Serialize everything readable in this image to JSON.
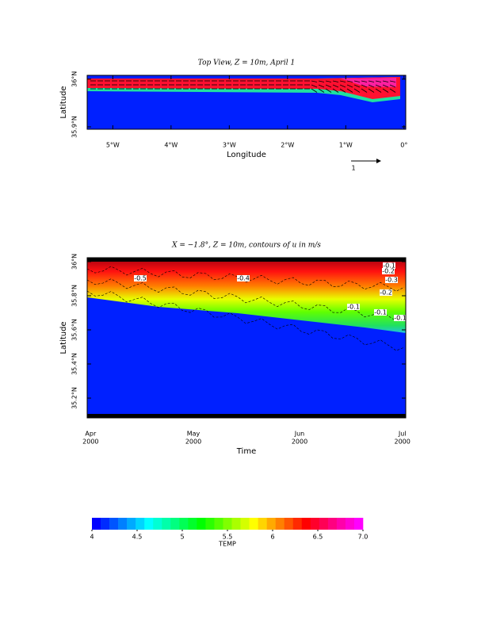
{
  "chart_data": [
    {
      "type": "vector-map",
      "title": "Top View, Z = 10m, April 1",
      "xlabel": "Longitude",
      "ylabel": "Latitude",
      "xlim": [
        -5.44,
        0.03
      ],
      "ylim": [
        35.895,
        36.008
      ],
      "xticks": [
        {
          "value": -5,
          "label": "5°W"
        },
        {
          "value": -4,
          "label": "4°W"
        },
        {
          "value": -3,
          "label": "3°W"
        },
        {
          "value": -2,
          "label": "2°W"
        },
        {
          "value": -1,
          "label": "1°W"
        },
        {
          "value": 0,
          "label": "0°"
        }
      ],
      "yticks": [
        {
          "value": 36,
          "label": "36°N"
        },
        {
          "value": 35.9,
          "label": "35.9°N"
        }
      ],
      "reference_vector": 1
    },
    {
      "type": "hovmoller",
      "title": "X = −1.8°, Z = 10m, contours of u in m/s",
      "xlabel": "Time",
      "ylabel": "Latitude",
      "xlim": [
        "2000-03-31",
        "2000-07-02"
      ],
      "ylim": [
        35.084,
        36.023
      ],
      "xticks": [
        {
          "value": "2000-04-01",
          "label": "Apr",
          "year": "2000"
        },
        {
          "value": "2000-05-01",
          "label": "May",
          "year": "2000"
        },
        {
          "value": "2000-06-01",
          "label": "Jun",
          "year": "2000"
        },
        {
          "value": "2000-07-01",
          "label": "Jul",
          "year": "2000"
        }
      ],
      "yticks": [
        {
          "value": 36,
          "label": "36°N"
        },
        {
          "value": 35.8,
          "label": "35.8°N"
        },
        {
          "value": 35.6,
          "label": "35.6°N"
        },
        {
          "value": 35.4,
          "label": "35.4°N"
        },
        {
          "value": 35.2,
          "label": "35.2°N"
        }
      ],
      "contour_labels": [
        -0.5,
        -0.4,
        -0.1,
        -0.2,
        -0.3,
        -0.2,
        -0.1,
        -0.1,
        -0.1
      ]
    },
    {
      "type": "colorbar",
      "label": "TEMP",
      "lim": [
        4,
        7
      ],
      "ticks": [
        4,
        4.5,
        5,
        5.5,
        6,
        6.5,
        {
          "value": 7,
          "label": "7.0"
        }
      ],
      "colormap": [
        "#0000ff",
        "#00ffff",
        "#00ff00",
        "#ffff00",
        "#ff0000",
        "#ff00ff"
      ]
    }
  ]
}
